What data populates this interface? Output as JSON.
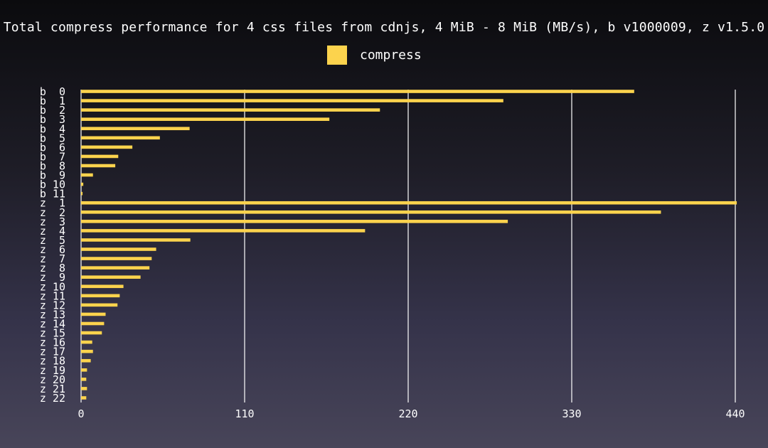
{
  "chart_data": {
    "type": "bar",
    "orientation": "horizontal",
    "title": "Total compress performance for 4 css files from cdnjs, 4 MiB - 8 MiB (MB/s), b v1000009, z v1.5.0",
    "xlabel": "",
    "ylabel": "",
    "categories": [
      "b  0",
      "b  1",
      "b  2",
      "b  3",
      "b  4",
      "b  5",
      "b  6",
      "b  7",
      "b  8",
      "b  9",
      "b 10",
      "b 11",
      "z  1",
      "z  2",
      "z  3",
      "z  4",
      "z  5",
      "z  6",
      "z  7",
      "z  8",
      "z  9",
      "z 10",
      "z 11",
      "z 12",
      "z 13",
      "z 14",
      "z 15",
      "z 16",
      "z 17",
      "z 18",
      "z 19",
      "z 20",
      "z 21",
      "z 22"
    ],
    "series": [
      {
        "name": "compress",
        "color": "#fcd34d",
        "values": [
          372,
          284,
          201,
          167,
          73,
          53,
          34.5,
          25,
          23,
          8,
          1.5,
          1,
          441,
          390,
          287,
          191,
          73.5,
          50.5,
          47.5,
          46,
          40,
          28.5,
          26,
          24.5,
          16.5,
          15.5,
          14,
          7.5,
          8,
          6.5,
          4,
          3.5,
          4,
          3.5
        ]
      }
    ],
    "xlim": [
      0,
      440
    ],
    "xticks": [
      "0",
      "110",
      "220",
      "330",
      "440"
    ],
    "xgrid": true,
    "legend_position": "top-center"
  }
}
